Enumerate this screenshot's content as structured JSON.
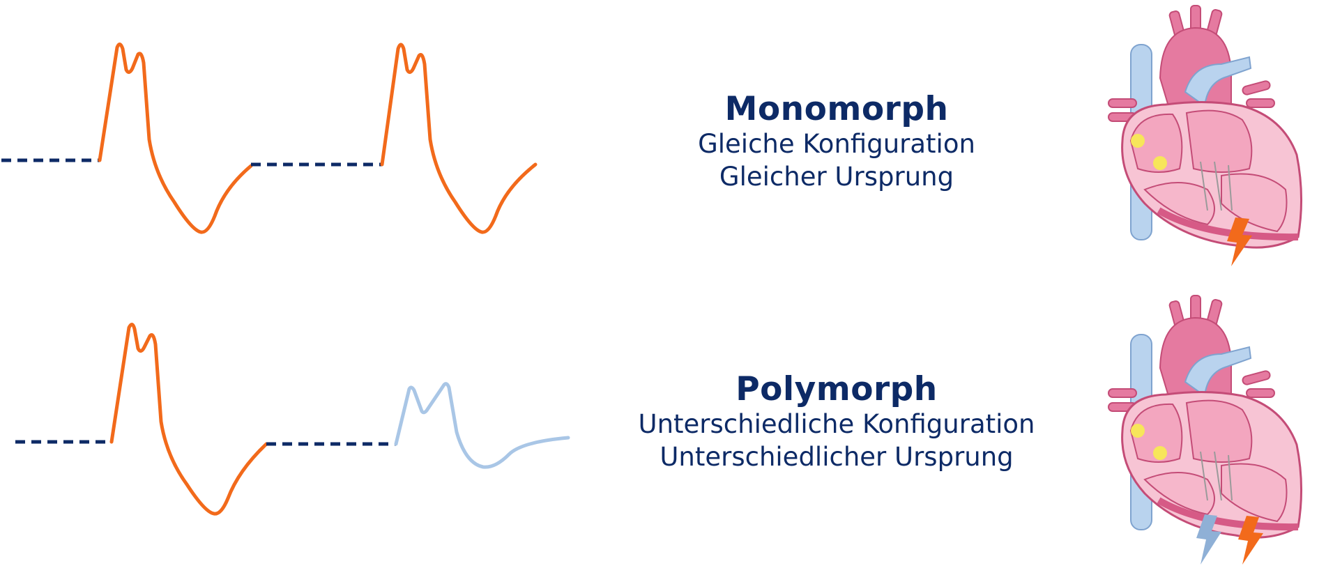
{
  "monomorph": {
    "title": "Monomorph",
    "line1": "Gleiche Konfiguration",
    "line2": "Gleicher Ursprung"
  },
  "polymorph": {
    "title": "Polymorph",
    "line1": "Unterschiedliche Konfiguration",
    "line2": "Unterschiedlicher Ursprung"
  },
  "colors": {
    "baseline": "#0d2a66",
    "origin_1": "#f26a1b",
    "origin_2": "#a9c6e6",
    "text": "#0d2a66"
  }
}
